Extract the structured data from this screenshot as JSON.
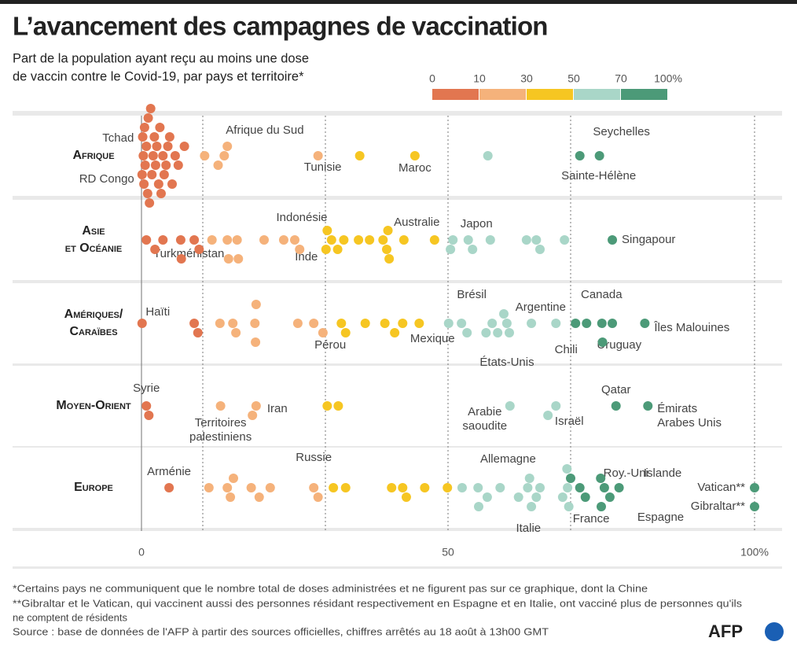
{
  "chart_data": {
    "type": "beeswarm",
    "title": "L’avancement des campagnes de vaccination",
    "subtitle": [
      "Part de la population ayant reçu au moins une dose",
      "de vaccin contre le Covid-19, par pays et territoire*"
    ],
    "color_scale": {
      "breaks": [
        0,
        10,
        30,
        50,
        70,
        {
          "value": 100,
          "label": "100%"
        }
      ],
      "colors": [
        "#e27650",
        "#f5b27b",
        "#f6c622",
        "#a9d6c8",
        "#4c9a78"
      ]
    },
    "xlim": [
      0,
      100
    ],
    "xticks": [
      0,
      50,
      {
        "value": 100,
        "label": "100%"
      }
    ],
    "groups": [
      {
        "name": [
          "Afrique"
        ],
        "values": [
          0.3,
          0.1,
          13.5,
          28.8,
          44.6,
          71.5,
          74.7,
          0.2,
          0.4,
          0.5,
          0.6,
          0.8,
          1.0,
          1.1,
          1.3,
          1.5,
          1.7,
          1.9,
          2.1,
          2.3,
          2.5,
          2.8,
          3.0,
          3.2,
          3.5,
          3.7,
          4.0,
          4.3,
          4.6,
          5.0,
          5.5,
          6.0,
          7.0,
          10.3,
          12.5,
          14.0,
          35.6,
          56.5
        ],
        "labels": [
          "Tchad",
          "RD Congo",
          "Afrique du Sud",
          "Tunisie",
          "Maroc",
          "Sainte-Hélène",
          "Seychelles",
          null,
          null,
          null,
          null,
          null,
          null,
          null,
          null,
          null,
          null,
          null,
          null,
          null,
          null,
          null,
          null,
          null,
          null,
          null,
          null,
          null,
          null,
          null,
          null,
          null,
          null,
          null,
          null,
          null,
          null,
          null
        ]
      },
      {
        "name": [
          "Asie",
          "et Océanie"
        ],
        "values": [
          0.8,
          20,
          31,
          39.4,
          50.8,
          76.8,
          2.2,
          3.5,
          6.4,
          6.5,
          8.6,
          9.4,
          11.5,
          14,
          14.2,
          15.6,
          15.8,
          23.2,
          25,
          25.8,
          30.1,
          30.3,
          32,
          33,
          35.4,
          37.2,
          40,
          40.2,
          40.4,
          42.8,
          47.8,
          50.4,
          53.3,
          54,
          56.9,
          62.8,
          64.4,
          65,
          69
        ],
        "labels": [
          "Turkménistan",
          "Indonésie",
          "Inde",
          "Australie",
          "Japon",
          "Singapour",
          null,
          null,
          null,
          null,
          null,
          null,
          null,
          null,
          null,
          null,
          null,
          null,
          null,
          null,
          null,
          null,
          null,
          null,
          null,
          null,
          null,
          null,
          null,
          null,
          null,
          null,
          null,
          null,
          null,
          null,
          null,
          null,
          null
        ]
      },
      {
        "name": [
          "Amériques/",
          "Caraïbes"
        ],
        "values": [
          0.1,
          28.1,
          42.6,
          57.2,
          59.6,
          60,
          70.8,
          72.6,
          75.1,
          82.1,
          8.6,
          9.2,
          12.8,
          14.9,
          15.4,
          18.5,
          18.6,
          18.7,
          25.5,
          29.6,
          32.6,
          33.3,
          36.5,
          39.7,
          41.3,
          45.3,
          50.1,
          52.2,
          53.1,
          56.2,
          58.1,
          59.1,
          63.6,
          67.6,
          75.2,
          76.8
        ],
        "labels": [
          "Haïti",
          "Pérou",
          "Mexique",
          "Brésil",
          "Argentine",
          "États-Unis",
          "Chili",
          "Canada",
          "Uruguay",
          "Îles Malouines",
          null,
          null,
          null,
          null,
          null,
          null,
          null,
          null,
          null,
          null,
          null,
          null,
          null,
          null,
          null,
          null,
          null,
          null,
          null,
          null,
          null,
          null,
          null,
          null,
          null,
          null
        ]
      },
      {
        "name": [
          "Moyen-Orient"
        ],
        "values": [
          0.8,
          12.9,
          18.7,
          60.1,
          67.6,
          77.4,
          82.6,
          1.2,
          18.1,
          30.3,
          32.1,
          66.3
        ],
        "labels": [
          "Syrie",
          [
            "Territoires",
            "palestiniens"
          ],
          "Iran",
          [
            "Arabie",
            "saoudite"
          ],
          "Israël",
          "Qatar",
          [
            "Émirats",
            "Arabes Unis"
          ],
          null,
          null,
          null,
          null,
          null
        ]
      },
      {
        "name": [
          "Europe"
        ],
        "values": [
          4.5,
          28.1,
          63,
          64.4,
          69.5,
          69.7,
          75.5,
          76.4,
          100,
          100,
          11,
          14,
          14.5,
          15,
          17.9,
          19.2,
          21,
          28.8,
          31.3,
          33.3,
          40.8,
          42.6,
          43.2,
          46.2,
          49.9,
          52.3,
          54.9,
          55,
          56.4,
          58.5,
          61.5,
          63.3,
          63.6,
          65,
          68.7,
          69.4,
          70,
          71.5,
          72.4,
          74.9,
          75,
          77.9
        ],
        "labels": [
          "Arménie",
          "Russie",
          "Allemagne",
          "Italie",
          "France",
          "Roy.-Uni",
          "Islande",
          "Espagne",
          "Vatican**",
          "Gibraltar**",
          null,
          null,
          null,
          null,
          null,
          null,
          null,
          null,
          null,
          null,
          null,
          null,
          null,
          null,
          null,
          null,
          null,
          null,
          null,
          null,
          null,
          null,
          null,
          null,
          null,
          null,
          null,
          null,
          null,
          null,
          null,
          null
        ]
      }
    ],
    "footnotes": [
      "*Certains pays ne communiquent que le nombre total de doses administrées et ne figurent pas sur ce graphique, dont la Chine",
      "**Gibraltar et le Vatican, qui vaccinent aussi des personnes résidant respectivement en Espagne et en Italie, ont vacciné plus de personnes qu'ils",
      "ne comptent de résidents"
    ],
    "source": "Source : base de données de l'AFP à partir des sources officielles, chiffres arrêtés au 18 août à 13h00 GMT",
    "logo": "AFP"
  }
}
